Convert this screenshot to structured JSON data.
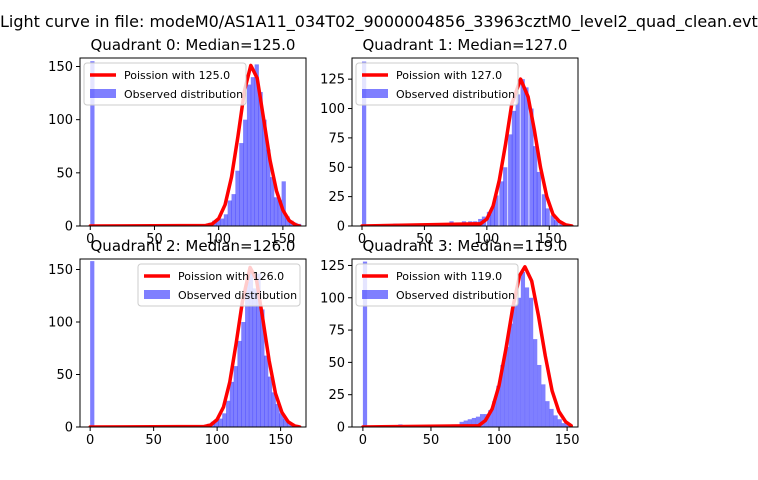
{
  "suptitle": "Light curve in file: modeM0/AS1A11_034T02_9000004856_33963cztM0_level2_quad_clean.evt",
  "colors": {
    "poisson": "#ff0000",
    "observed": "#0000ff",
    "observed_alpha": 0.5
  },
  "chart_data": [
    {
      "type": "bar",
      "title": "Quadrant 0: Median=125.0",
      "median": 125.0,
      "xlim": [
        -8,
        168
      ],
      "ylim": [
        0,
        158
      ],
      "xticks": [
        0,
        50,
        100,
        150
      ],
      "yticks": [
        0,
        50,
        100,
        150
      ],
      "legend_position": "upper-left",
      "legend": [
        "Poission with 125.0",
        "Observed distribution"
      ],
      "bin_width": 3.3,
      "observed_bins": [
        [
          0,
          155
        ],
        [
          85,
          1
        ],
        [
          89,
          1
        ],
        [
          92,
          3
        ],
        [
          95,
          5
        ],
        [
          98,
          6
        ],
        [
          101,
          7
        ],
        [
          104,
          11
        ],
        [
          107,
          24
        ],
        [
          110,
          30
        ],
        [
          113,
          52
        ],
        [
          116,
          78
        ],
        [
          119,
          100
        ],
        [
          122,
          133
        ],
        [
          125,
          140
        ],
        [
          128,
          152
        ],
        [
          131,
          126
        ],
        [
          134,
          100
        ],
        [
          137,
          72
        ],
        [
          140,
          46
        ],
        [
          143,
          27
        ],
        [
          146,
          24
        ],
        [
          149,
          42
        ],
        [
          152,
          9
        ],
        [
          155,
          5
        ],
        [
          158,
          3
        ],
        [
          161,
          2
        ]
      ],
      "poisson_curve": [
        [
          0,
          0
        ],
        [
          90,
          0.5
        ],
        [
          95,
          2
        ],
        [
          100,
          7
        ],
        [
          105,
          20
        ],
        [
          110,
          46
        ],
        [
          115,
          84
        ],
        [
          120,
          127
        ],
        [
          125,
          151
        ],
        [
          130,
          139
        ],
        [
          135,
          101
        ],
        [
          140,
          62
        ],
        [
          145,
          33
        ],
        [
          150,
          15
        ],
        [
          155,
          5
        ],
        [
          160,
          1
        ],
        [
          163,
          0
        ]
      ]
    },
    {
      "type": "bar",
      "title": "Quadrant 1: Median=127.0",
      "median": 127.0,
      "xlim": [
        -8,
        173
      ],
      "ylim": [
        0,
        143
      ],
      "xticks": [
        0,
        50,
        100,
        150
      ],
      "yticks": [
        0,
        25,
        50,
        75,
        100,
        125
      ],
      "legend_position": "upper-left",
      "legend": [
        "Poission with 127.0",
        "Observed distribution"
      ],
      "bin_width": 3.4,
      "observed_bins": [
        [
          0,
          140
        ],
        [
          25,
          2
        ],
        [
          30,
          1
        ],
        [
          35,
          2
        ],
        [
          40,
          1
        ],
        [
          45,
          1
        ],
        [
          50,
          1
        ],
        [
          55,
          2
        ],
        [
          60,
          1
        ],
        [
          65,
          2
        ],
        [
          70,
          4
        ],
        [
          75,
          3
        ],
        [
          80,
          4
        ],
        [
          85,
          4
        ],
        [
          89,
          4
        ],
        [
          93,
          6
        ],
        [
          96,
          8
        ],
        [
          100,
          12
        ],
        [
          103,
          16
        ],
        [
          106,
          26
        ],
        [
          110,
          38
        ],
        [
          113,
          50
        ],
        [
          117,
          78
        ],
        [
          120,
          98
        ],
        [
          123,
          112
        ],
        [
          127,
          125
        ],
        [
          130,
          118
        ],
        [
          134,
          100
        ],
        [
          137,
          68
        ],
        [
          140,
          46
        ],
        [
          144,
          27
        ],
        [
          147,
          15
        ],
        [
          151,
          9
        ],
        [
          154,
          5
        ],
        [
          158,
          3
        ],
        [
          162,
          2
        ]
      ],
      "poisson_curve": [
        [
          0,
          0
        ],
        [
          95,
          2
        ],
        [
          100,
          6
        ],
        [
          105,
          17
        ],
        [
          110,
          39
        ],
        [
          115,
          70
        ],
        [
          120,
          104
        ],
        [
          127,
          125
        ],
        [
          133,
          110
        ],
        [
          138,
          82
        ],
        [
          143,
          50
        ],
        [
          148,
          25
        ],
        [
          153,
          10
        ],
        [
          158,
          4
        ],
        [
          163,
          1
        ],
        [
          168,
          0
        ]
      ]
    },
    {
      "type": "bar",
      "title": "Quadrant 2: Median=126.0",
      "median": 126.0,
      "xlim": [
        -8,
        170
      ],
      "ylim": [
        0,
        160
      ],
      "xticks": [
        0,
        50,
        100,
        150
      ],
      "yticks": [
        0,
        50,
        100,
        150
      ],
      "legend_position": "upper-right",
      "legend": [
        "Poission with 126.0",
        "Observed distribution"
      ],
      "bin_width": 3.3,
      "observed_bins": [
        [
          0,
          158
        ],
        [
          30,
          1
        ],
        [
          48,
          1
        ],
        [
          85,
          1
        ],
        [
          89,
          2
        ],
        [
          92,
          3
        ],
        [
          95,
          5
        ],
        [
          98,
          6
        ],
        [
          101,
          8
        ],
        [
          104,
          13
        ],
        [
          107,
          25
        ],
        [
          110,
          43
        ],
        [
          113,
          58
        ],
        [
          116,
          82
        ],
        [
          119,
          100
        ],
        [
          122,
          138
        ],
        [
          125,
          150
        ],
        [
          128,
          132
        ],
        [
          131,
          146
        ],
        [
          134,
          112
        ],
        [
          137,
          68
        ],
        [
          140,
          48
        ],
        [
          143,
          33
        ],
        [
          146,
          22
        ],
        [
          149,
          13
        ],
        [
          152,
          8
        ],
        [
          155,
          5
        ],
        [
          158,
          3
        ],
        [
          161,
          2
        ]
      ],
      "poisson_curve": [
        [
          0,
          0
        ],
        [
          90,
          0.5
        ],
        [
          95,
          2
        ],
        [
          100,
          7
        ],
        [
          105,
          19
        ],
        [
          110,
          43
        ],
        [
          115,
          80
        ],
        [
          120,
          120
        ],
        [
          126,
          152
        ],
        [
          131,
          140
        ],
        [
          136,
          103
        ],
        [
          141,
          63
        ],
        [
          146,
          32
        ],
        [
          151,
          14
        ],
        [
          156,
          5
        ],
        [
          161,
          1
        ],
        [
          165,
          0
        ]
      ]
    },
    {
      "type": "bar",
      "title": "Quadrant 3: Median=119.0",
      "median": 119.0,
      "xlim": [
        -8,
        158
      ],
      "ylim": [
        0,
        130
      ],
      "xticks": [
        0,
        50,
        100,
        150
      ],
      "yticks": [
        0,
        25,
        50,
        75,
        100,
        125
      ],
      "legend_position": "upper-left",
      "legend": [
        "Poission with 119.0",
        "Observed distribution"
      ],
      "bin_width": 3.1,
      "observed_bins": [
        [
          0,
          128
        ],
        [
          16,
          1
        ],
        [
          22,
          1
        ],
        [
          26,
          2
        ],
        [
          30,
          1
        ],
        [
          35,
          1
        ],
        [
          40,
          1
        ],
        [
          45,
          1
        ],
        [
          50,
          1
        ],
        [
          55,
          1
        ],
        [
          60,
          1
        ],
        [
          65,
          2
        ],
        [
          68,
          2
        ],
        [
          71,
          4
        ],
        [
          74,
          5
        ],
        [
          77,
          6
        ],
        [
          80,
          7
        ],
        [
          83,
          8
        ],
        [
          86,
          10
        ],
        [
          89,
          10
        ],
        [
          92,
          13
        ],
        [
          95,
          20
        ],
        [
          98,
          32
        ],
        [
          101,
          48
        ],
        [
          104,
          62
        ],
        [
          107,
          80
        ],
        [
          110,
          95
        ],
        [
          113,
          100
        ],
        [
          116,
          120
        ],
        [
          119,
          108
        ],
        [
          122,
          100
        ],
        [
          125,
          68
        ],
        [
          128,
          48
        ],
        [
          131,
          33
        ],
        [
          134,
          20
        ],
        [
          137,
          14
        ],
        [
          140,
          9
        ],
        [
          143,
          6
        ],
        [
          146,
          3
        ],
        [
          149,
          2
        ]
      ],
      "poisson_curve": [
        [
          0,
          0
        ],
        [
          85,
          1
        ],
        [
          90,
          5
        ],
        [
          95,
          14
        ],
        [
          100,
          32
        ],
        [
          105,
          60
        ],
        [
          110,
          92
        ],
        [
          115,
          117
        ],
        [
          119,
          124
        ],
        [
          124,
          113
        ],
        [
          129,
          86
        ],
        [
          134,
          55
        ],
        [
          139,
          28
        ],
        [
          144,
          12
        ],
        [
          149,
          4
        ],
        [
          153,
          1
        ]
      ]
    }
  ]
}
